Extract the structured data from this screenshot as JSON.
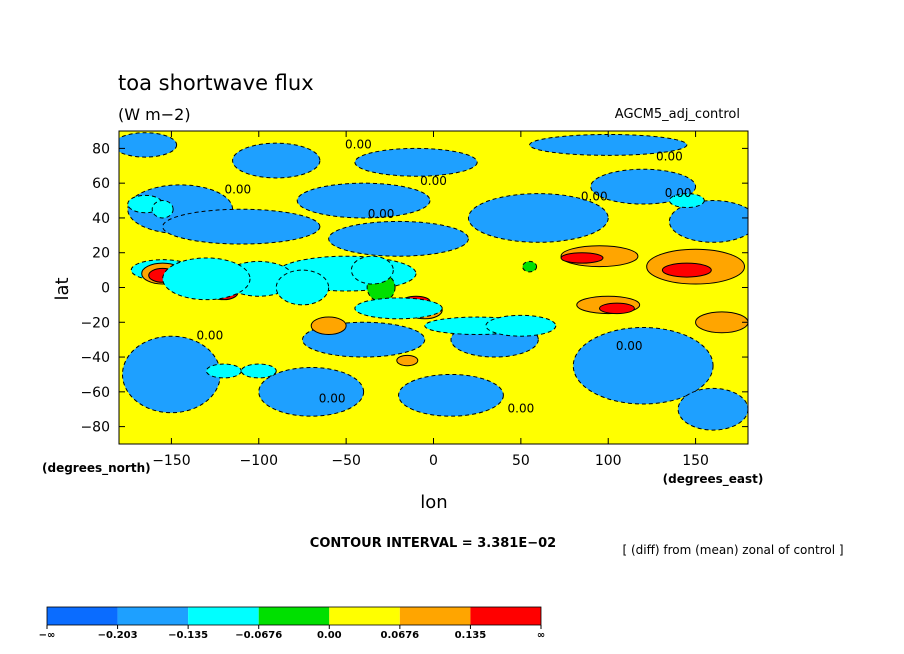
{
  "chart_data": {
    "type": "heatmap",
    "title": "toa shortwave flux",
    "units": "(W m−2)",
    "run_label": "AGCM5_adj_control",
    "xlabel": "lon",
    "ylabel": "lat",
    "x_unit_label": "(degrees_east)",
    "y_unit_label": "(degrees_north)",
    "xlim": [
      -180,
      180
    ],
    "ylim": [
      -90,
      90
    ],
    "x_ticks": [
      {
        "value": -150,
        "label": "−150"
      },
      {
        "value": -100,
        "label": "−100"
      },
      {
        "value": -50,
        "label": "−50"
      },
      {
        "value": 0,
        "label": "0"
      },
      {
        "value": 50,
        "label": "50"
      },
      {
        "value": 100,
        "label": "100"
      },
      {
        "value": 150,
        "label": "150"
      }
    ],
    "y_ticks": [
      {
        "value": 80,
        "label": "80"
      },
      {
        "value": 60,
        "label": "60"
      },
      {
        "value": 40,
        "label": "40"
      },
      {
        "value": 20,
        "label": "20"
      },
      {
        "value": 0,
        "label": "0"
      },
      {
        "value": -20,
        "label": "−20"
      },
      {
        "value": -40,
        "label": "−40"
      },
      {
        "value": -60,
        "label": "−60"
      },
      {
        "value": -80,
        "label": "−80"
      }
    ],
    "contour_interval": "CONTOUR INTERVAL = 3.381E−02",
    "diff_note": "[ (diff) from (mean) zonal of control ]",
    "contour_labels": [
      {
        "text": "0.00",
        "lon": -43,
        "lat": 80
      },
      {
        "text": "0.00",
        "lon": 135,
        "lat": 73
      },
      {
        "text": "0.00",
        "lon": 0,
        "lat": 59
      },
      {
        "text": "0.00",
        "lon": -112,
        "lat": 54
      },
      {
        "text": "0.00",
        "lon": 92,
        "lat": 50
      },
      {
        "text": "0.00",
        "lon": 140,
        "lat": 52
      },
      {
        "text": "0.00",
        "lon": -30,
        "lat": 40
      },
      {
        "text": "0.00",
        "lon": -128,
        "lat": -30
      },
      {
        "text": "0.00",
        "lon": -58,
        "lat": -66
      },
      {
        "text": "0.00",
        "lon": 50,
        "lat": -72
      },
      {
        "text": "0.00",
        "lon": 112,
        "lat": -36
      }
    ],
    "colorbar": {
      "colors": [
        "#0a6cff",
        "#1ea0ff",
        "#00ffff",
        "#00e000",
        "#ffff00",
        "#ffa500",
        "#ff0000"
      ],
      "labels": [
        "−∞",
        "−0.203",
        "−0.135",
        "−0.0676",
        "0.00",
        "0.0676",
        "0.135",
        "∞"
      ]
    },
    "regions": [
      {
        "level": 1,
        "lon": -165,
        "lat": 82,
        "rx": 18,
        "ry": 7
      },
      {
        "level": 1,
        "lon": -90,
        "lat": 73,
        "rx": 25,
        "ry": 10
      },
      {
        "level": 1,
        "lon": -10,
        "lat": 72,
        "rx": 35,
        "ry": 8
      },
      {
        "level": 1,
        "lon": -40,
        "lat": 50,
        "rx": 38,
        "ry": 10
      },
      {
        "level": 1,
        "lon": -145,
        "lat": 45,
        "rx": 30,
        "ry": 14
      },
      {
        "level": 1,
        "lon": -110,
        "lat": 35,
        "rx": 45,
        "ry": 10
      },
      {
        "level": 1,
        "lon": -20,
        "lat": 28,
        "rx": 40,
        "ry": 10
      },
      {
        "level": 1,
        "lon": 60,
        "lat": 40,
        "rx": 40,
        "ry": 14
      },
      {
        "level": 1,
        "lon": 120,
        "lat": 58,
        "rx": 30,
        "ry": 10
      },
      {
        "level": 1,
        "lon": 160,
        "lat": 38,
        "rx": 25,
        "ry": 12
      },
      {
        "level": 1,
        "lon": 100,
        "lat": 82,
        "rx": 45,
        "ry": 6
      },
      {
        "level": 1,
        "lon": -150,
        "lat": -50,
        "rx": 28,
        "ry": 22
      },
      {
        "level": 1,
        "lon": -70,
        "lat": -60,
        "rx": 30,
        "ry": 14
      },
      {
        "level": 1,
        "lon": 10,
        "lat": -62,
        "rx": 30,
        "ry": 12
      },
      {
        "level": 1,
        "lon": 120,
        "lat": -45,
        "rx": 40,
        "ry": 22
      },
      {
        "level": 1,
        "lon": -40,
        "lat": -30,
        "rx": 35,
        "ry": 10
      },
      {
        "level": 1,
        "lon": 35,
        "lat": -30,
        "rx": 25,
        "ry": 10
      },
      {
        "level": 1,
        "lon": 160,
        "lat": -70,
        "rx": 20,
        "ry": 12
      },
      {
        "level": 2,
        "lon": -165,
        "lat": 48,
        "rx": 10,
        "ry": 5
      },
      {
        "level": 2,
        "lon": -50,
        "lat": 8,
        "rx": 40,
        "ry": 10
      },
      {
        "level": 2,
        "lon": -100,
        "lat": 5,
        "rx": 20,
        "ry": 10
      },
      {
        "level": 2,
        "lon": -155,
        "lat": 10,
        "rx": 18,
        "ry": 6
      },
      {
        "level": 2,
        "lon": -120,
        "lat": -48,
        "rx": 10,
        "ry": 4
      },
      {
        "level": 2,
        "lon": 25,
        "lat": -22,
        "rx": 30,
        "ry": 5
      },
      {
        "level": 2,
        "lon": 145,
        "lat": 50,
        "rx": 10,
        "ry": 4
      },
      {
        "level": 3,
        "lon": 55,
        "lat": 12,
        "rx": 4,
        "ry": 3
      },
      {
        "level": 3,
        "lon": -30,
        "lat": 0,
        "rx": 8,
        "ry": 8
      },
      {
        "level": 5,
        "lon": -155,
        "lat": 8,
        "rx": 12,
        "ry": 6
      },
      {
        "level": 5,
        "lon": -140,
        "lat": 10,
        "rx": 6,
        "ry": 5
      },
      {
        "level": 5,
        "lon": -60,
        "lat": -22,
        "rx": 10,
        "ry": 5
      },
      {
        "level": 5,
        "lon": 95,
        "lat": 18,
        "rx": 22,
        "ry": 6
      },
      {
        "level": 5,
        "lon": 150,
        "lat": 12,
        "rx": 28,
        "ry": 10
      },
      {
        "level": 5,
        "lon": 165,
        "lat": -20,
        "rx": 15,
        "ry": 6
      },
      {
        "level": 5,
        "lon": 100,
        "lat": -10,
        "rx": 18,
        "ry": 5
      },
      {
        "level": 5,
        "lon": -5,
        "lat": -13,
        "rx": 10,
        "ry": 5
      },
      {
        "level": 5,
        "lon": -15,
        "lat": -42,
        "rx": 6,
        "ry": 3
      },
      {
        "level": 6,
        "lon": -155,
        "lat": 7,
        "rx": 8,
        "ry": 4
      },
      {
        "level": 6,
        "lon": -120,
        "lat": -3,
        "rx": 8,
        "ry": 4
      },
      {
        "level": 6,
        "lon": 85,
        "lat": 17,
        "rx": 12,
        "ry": 3
      },
      {
        "level": 6,
        "lon": 145,
        "lat": 10,
        "rx": 14,
        "ry": 4
      },
      {
        "level": 6,
        "lon": 105,
        "lat": -12,
        "rx": 10,
        "ry": 3
      },
      {
        "level": 6,
        "lon": -10,
        "lat": -8,
        "rx": 8,
        "ry": 3
      }
    ],
    "minus_regions": [
      {
        "level": 2,
        "lon": -130,
        "lat": 5,
        "rx": 25,
        "ry": 12
      },
      {
        "level": 2,
        "lon": -75,
        "lat": 0,
        "rx": 15,
        "ry": 10
      },
      {
        "level": 2,
        "lon": -35,
        "lat": 10,
        "rx": 12,
        "ry": 8
      },
      {
        "level": 2,
        "lon": -20,
        "lat": -12,
        "rx": 25,
        "ry": 6
      },
      {
        "level": 2,
        "lon": 50,
        "lat": -22,
        "rx": 20,
        "ry": 6
      },
      {
        "level": 2,
        "lon": -100,
        "lat": -48,
        "rx": 10,
        "ry": 4
      },
      {
        "level": 2,
        "lon": -155,
        "lat": 45,
        "rx": 6,
        "ry": 5
      }
    ]
  }
}
